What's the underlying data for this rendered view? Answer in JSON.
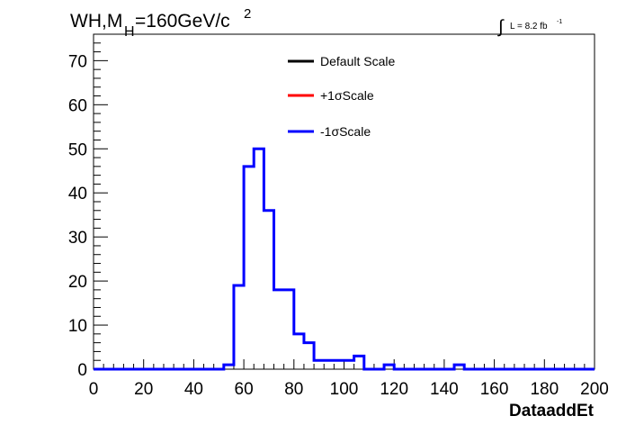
{
  "title": {
    "main": "WH,M",
    "sub": "H",
    "rest": "=160GeV/c",
    "sup": "2"
  },
  "luminosity": {
    "symbol": "∫",
    "text": "L = 8.2 fb",
    "sup": "-1"
  },
  "legend": [
    {
      "label": "Default Scale",
      "color": "#000000"
    },
    {
      "label": "+1σScale",
      "color": "#ff0000"
    },
    {
      "label": "-1σScale",
      "color": "#0000ff"
    }
  ],
  "chart_data": {
    "type": "histogram",
    "xlabel": "DataaddEt",
    "ylabel": "",
    "xlim": [
      0,
      200
    ],
    "ylim": [
      0,
      76
    ],
    "xticks": [
      0,
      20,
      40,
      60,
      80,
      100,
      120,
      140,
      160,
      180,
      200
    ],
    "yticks": [
      0,
      10,
      20,
      30,
      40,
      50,
      60,
      70
    ],
    "bin_width": 4,
    "bin_edges_start": 0,
    "series": [
      {
        "name": "-1σScale",
        "color": "#0000ff",
        "values": [
          0,
          0,
          0,
          0,
          0,
          0,
          0,
          0,
          0,
          0,
          0,
          0,
          0,
          1,
          19,
          46,
          50,
          36,
          18,
          18,
          8,
          6,
          2,
          2,
          2,
          2,
          3,
          0,
          0,
          1,
          0,
          0,
          0,
          0,
          0,
          0,
          1,
          0,
          0,
          0,
          0,
          0,
          0,
          0,
          0,
          0,
          0,
          0,
          0,
          0
        ]
      }
    ],
    "grid": false,
    "legend_position": "top-center"
  }
}
